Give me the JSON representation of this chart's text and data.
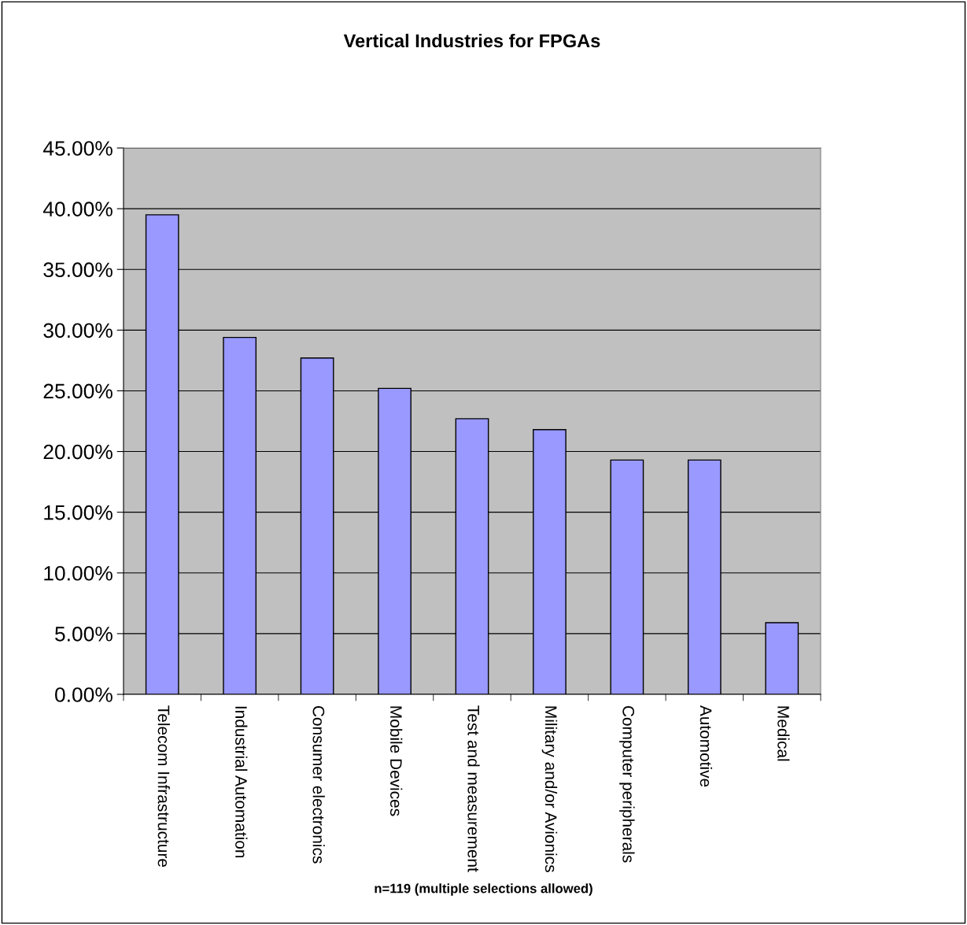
{
  "chart_data": {
    "type": "bar",
    "title": "Vertical Industries for FPGAs",
    "categories": [
      "Telecom Infrastructure",
      "Industrial Automation",
      "Consumer electronics",
      "Mobile Devices",
      "Test and measurement",
      "Military and/or Avionics",
      "Computer peripherals",
      "Automotive",
      "Medical"
    ],
    "values": [
      39.5,
      29.4,
      27.7,
      25.2,
      22.7,
      21.8,
      19.3,
      19.3,
      5.9
    ],
    "color": "#9999ff",
    "ylim": [
      0,
      45
    ],
    "yticks": [
      {
        "value": 0,
        "label": "0.00%"
      },
      {
        "value": 5,
        "label": "5.00%"
      },
      {
        "value": 10,
        "label": "10.00%"
      },
      {
        "value": 15,
        "label": "15.00%"
      },
      {
        "value": 20,
        "label": "20.00%"
      },
      {
        "value": 25,
        "label": "25.00%"
      },
      {
        "value": 30,
        "label": "30.00%"
      },
      {
        "value": 35,
        "label": "35.00%"
      },
      {
        "value": 40,
        "label": "40.00%"
      },
      {
        "value": 45,
        "label": "45.00%"
      }
    ],
    "grid": "y",
    "legend": false,
    "annotations": [
      "n=119 (multiple selections allowed)"
    ]
  }
}
